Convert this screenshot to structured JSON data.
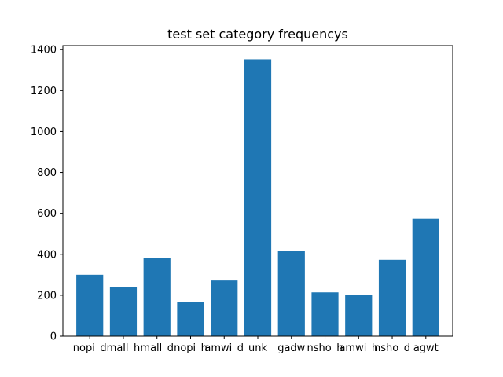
{
  "chart_data": {
    "type": "bar",
    "title": "test set category frequencys",
    "xlabel": "",
    "ylabel": "",
    "categories": [
      "nopi_d",
      "mall_h",
      "mall_d",
      "nopi_h",
      "amwi_d",
      "unk",
      "gadw",
      "nsho_h",
      "amwi_h",
      "nsho_d",
      "agwt"
    ],
    "values": [
      300,
      238,
      383,
      168,
      272,
      1353,
      415,
      214,
      203,
      373,
      573
    ],
    "ylim": [
      0,
      1420
    ],
    "yticks": [
      0,
      200,
      400,
      600,
      800,
      1000,
      1200,
      1400
    ],
    "grid": false,
    "legend": "none",
    "bar_color": "#1f77b4"
  }
}
